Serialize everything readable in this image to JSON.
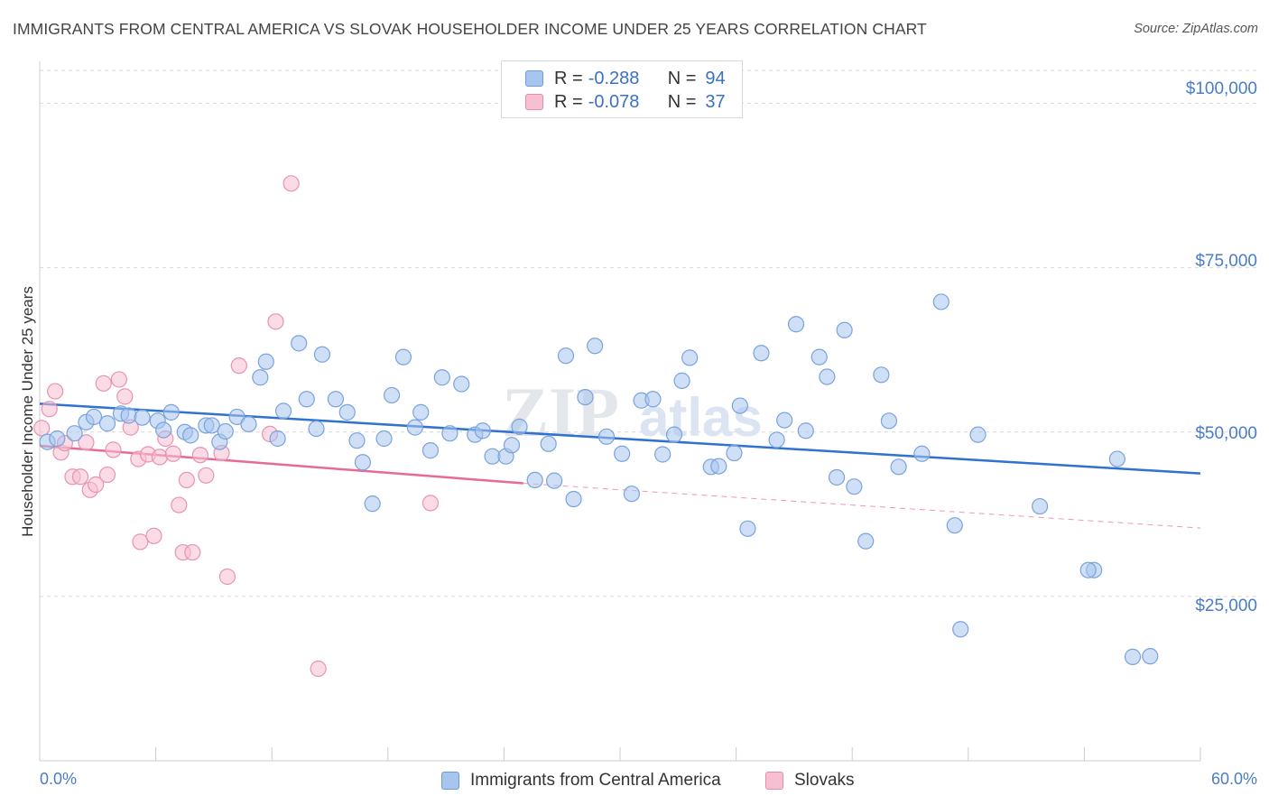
{
  "header": {
    "title": "IMMIGRANTS FROM CENTRAL AMERICA VS SLOVAK HOUSEHOLDER INCOME UNDER 25 YEARS CORRELATION CHART",
    "source": "Source: ZipAtlas.com"
  },
  "watermark": {
    "zip": "ZIP",
    "atlas": "atlas"
  },
  "legend": {
    "rows": [
      {
        "r_label": "R =",
        "r_value": "-0.288",
        "n_label": "N =",
        "n_value": "94",
        "color": "#a8c5ee",
        "border": "#6f9ad8"
      },
      {
        "r_label": "R =",
        "r_value": "-0.078",
        "n_label": "N =",
        "n_value": "37",
        "color": "#f7c0d2",
        "border": "#e88aaa"
      }
    ]
  },
  "bottom_legend": {
    "items": [
      {
        "label": "Immigrants from Central America",
        "color": "#a8c5ee",
        "border": "#6f9ad8"
      },
      {
        "label": "Slovaks",
        "color": "#f7c0d2",
        "border": "#e88aaa"
      }
    ]
  },
  "colors": {
    "blue_fill": "rgba(168,197,238,0.55)",
    "blue_stroke": "#7aa3dc",
    "blue_line": "#2f72d0",
    "pink_fill": "rgba(247,192,210,0.55)",
    "pink_stroke": "#e893b1",
    "pink_line": "#e86a94",
    "grid": "#d9d9d9",
    "tick_label": "#4a7cc7"
  },
  "chart_data": {
    "type": "scatter",
    "title": "IMMIGRANTS FROM CENTRAL AMERICA VS SLOVAK HOUSEHOLDER INCOME UNDER 25 YEARS CORRELATION CHART",
    "xlabel": "",
    "ylabel": "Householder Income Under 25 years",
    "xlim": [
      0,
      60
    ],
    "ylim": [
      0,
      105000
    ],
    "x_tick_labels": [
      "0.0%",
      "60.0%"
    ],
    "y_ticks": [
      25000,
      50000,
      75000,
      100000
    ],
    "y_tick_labels": [
      "$25,000",
      "$50,000",
      "$75,000",
      "$100,000"
    ],
    "grid": "horizontal dashed",
    "legend_position": "top-center",
    "series": [
      {
        "name": "Immigrants from Central America",
        "r": -0.288,
        "n": 94,
        "trend": {
          "x": [
            0,
            60
          ],
          "y": [
            54300,
            43700
          ]
        },
        "points": [
          [
            0.4,
            48500
          ],
          [
            0.9,
            49000
          ],
          [
            1.8,
            49800
          ],
          [
            2.4,
            51500
          ],
          [
            2.8,
            52300
          ],
          [
            3.5,
            51300
          ],
          [
            4.2,
            52800
          ],
          [
            4.6,
            52500
          ],
          [
            5.3,
            52200
          ],
          [
            6.1,
            51700
          ],
          [
            6.4,
            50300
          ],
          [
            6.8,
            53000
          ],
          [
            7.5,
            50000
          ],
          [
            7.8,
            49500
          ],
          [
            8.6,
            51000
          ],
          [
            8.9,
            51000
          ],
          [
            9.3,
            48500
          ],
          [
            9.6,
            50100
          ],
          [
            10.2,
            52300
          ],
          [
            10.8,
            51200
          ],
          [
            11.4,
            58300
          ],
          [
            11.7,
            60700
          ],
          [
            12.3,
            49000
          ],
          [
            12.6,
            53200
          ],
          [
            13.4,
            63500
          ],
          [
            13.8,
            55000
          ],
          [
            14.3,
            50500
          ],
          [
            14.6,
            61800
          ],
          [
            15.3,
            55000
          ],
          [
            15.9,
            53000
          ],
          [
            16.4,
            48700
          ],
          [
            16.7,
            45400
          ],
          [
            17.2,
            39100
          ],
          [
            17.8,
            49000
          ],
          [
            18.2,
            55600
          ],
          [
            18.8,
            61400
          ],
          [
            19.4,
            50700
          ],
          [
            19.7,
            53000
          ],
          [
            20.2,
            47200
          ],
          [
            20.8,
            58300
          ],
          [
            21.2,
            49800
          ],
          [
            21.8,
            57300
          ],
          [
            22.5,
            49600
          ],
          [
            22.9,
            50200
          ],
          [
            23.4,
            46300
          ],
          [
            24.1,
            46300
          ],
          [
            24.4,
            48000
          ],
          [
            24.8,
            50800
          ],
          [
            25.6,
            42700
          ],
          [
            26.3,
            48200
          ],
          [
            26.6,
            42600
          ],
          [
            27.2,
            61600
          ],
          [
            27.6,
            39800
          ],
          [
            28.2,
            55300
          ],
          [
            28.7,
            63100
          ],
          [
            29.3,
            49300
          ],
          [
            30.1,
            46700
          ],
          [
            30.6,
            40600
          ],
          [
            31.1,
            54800
          ],
          [
            31.7,
            55000
          ],
          [
            32.2,
            46600
          ],
          [
            32.8,
            49600
          ],
          [
            33.2,
            57800
          ],
          [
            33.6,
            61300
          ],
          [
            34.7,
            44700
          ],
          [
            35.1,
            44800
          ],
          [
            35.9,
            46800
          ],
          [
            36.2,
            54000
          ],
          [
            36.6,
            35300
          ],
          [
            37.3,
            62000
          ],
          [
            38.1,
            48800
          ],
          [
            38.5,
            51800
          ],
          [
            39.1,
            66400
          ],
          [
            39.6,
            50200
          ],
          [
            40.3,
            61400
          ],
          [
            40.7,
            58400
          ],
          [
            41.2,
            43100
          ],
          [
            41.6,
            65500
          ],
          [
            42.1,
            41700
          ],
          [
            42.7,
            33400
          ],
          [
            43.5,
            58700
          ],
          [
            43.9,
            51700
          ],
          [
            44.4,
            44700
          ],
          [
            45.6,
            46700
          ],
          [
            46.6,
            69800
          ],
          [
            47.3,
            35800
          ],
          [
            47.6,
            20000
          ],
          [
            48.5,
            49600
          ],
          [
            51.7,
            38700
          ],
          [
            54.5,
            29000
          ],
          [
            54.2,
            29000
          ],
          [
            55.7,
            45900
          ],
          [
            56.5,
            15800
          ],
          [
            57.4,
            15900
          ]
        ]
      },
      {
        "name": "Slovaks",
        "r": -0.078,
        "n": 37,
        "trend_solid": {
          "x": [
            0,
            25
          ],
          "y": [
            47900,
            42200
          ]
        },
        "trend_dashed": {
          "x": [
            25,
            60
          ],
          "y": [
            42200,
            35400
          ]
        },
        "points": [
          [
            0.1,
            50600
          ],
          [
            0.5,
            53500
          ],
          [
            0.8,
            56200
          ],
          [
            1.1,
            46900
          ],
          [
            1.3,
            48300
          ],
          [
            1.7,
            43200
          ],
          [
            2.1,
            43200
          ],
          [
            2.4,
            48400
          ],
          [
            2.6,
            41200
          ],
          [
            2.9,
            42000
          ],
          [
            3.3,
            57400
          ],
          [
            3.5,
            43500
          ],
          [
            3.8,
            47300
          ],
          [
            4.1,
            58000
          ],
          [
            4.4,
            55400
          ],
          [
            4.7,
            50700
          ],
          [
            5.1,
            45900
          ],
          [
            5.2,
            33300
          ],
          [
            5.6,
            46600
          ],
          [
            5.9,
            34200
          ],
          [
            6.2,
            46200
          ],
          [
            6.5,
            49000
          ],
          [
            6.9,
            46700
          ],
          [
            7.2,
            38900
          ],
          [
            7.4,
            31700
          ],
          [
            7.6,
            42700
          ],
          [
            7.9,
            31700
          ],
          [
            8.3,
            46500
          ],
          [
            8.6,
            43400
          ],
          [
            9.4,
            46800
          ],
          [
            9.7,
            28000
          ],
          [
            10.3,
            60100
          ],
          [
            11.9,
            49700
          ],
          [
            12.2,
            66800
          ],
          [
            13.0,
            87800
          ],
          [
            14.4,
            14000
          ],
          [
            20.2,
            39200
          ]
        ]
      }
    ]
  }
}
